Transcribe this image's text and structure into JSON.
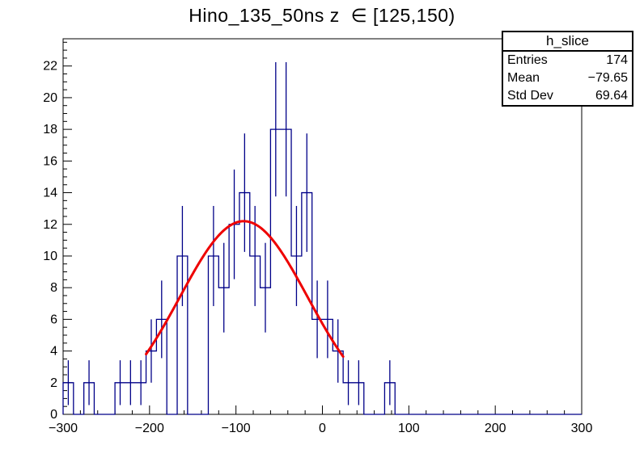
{
  "chart_data": {
    "type": "bar",
    "subtype": "root-histogram-with-gaussian-fit",
    "title": "Hino_135_50ns z  ∈ [125,150)",
    "xlabel": "",
    "ylabel": "",
    "xlim": [
      -300,
      300
    ],
    "ylim": [
      0,
      23.72
    ],
    "x_axis": {
      "major_ticks": [
        -300,
        -200,
        -100,
        0,
        100,
        200,
        300
      ],
      "minor_step": 20
    },
    "y_axis": {
      "major_ticks": [
        0,
        2,
        4,
        6,
        8,
        10,
        12,
        14,
        16,
        18,
        20,
        22
      ],
      "minor_step": 0.5
    },
    "bins": {
      "xmin": -300,
      "bin_width": 12,
      "counts": [
        2,
        0,
        2,
        0,
        0,
        2,
        2,
        2,
        4,
        6,
        0,
        10,
        0,
        0,
        10,
        8,
        12,
        14,
        10,
        8,
        18,
        18,
        10,
        14,
        6,
        6,
        4,
        2,
        2,
        0,
        0,
        2,
        0,
        0,
        0,
        0,
        0,
        0,
        0,
        0,
        0,
        0,
        0,
        0,
        0,
        0,
        0,
        0,
        0,
        0
      ]
    },
    "error_bars": "sqrt(count), drawn for non-empty bins",
    "fit": {
      "type": "gaussian",
      "amplitude": 12.2,
      "mean": -91,
      "sigma": 74,
      "range": [
        -204,
        25
      ]
    },
    "grid": false,
    "legend": false,
    "colors": {
      "histogram": "#000088",
      "fit": "#ee0000",
      "axis": "#000000",
      "background": "#ffffff"
    }
  },
  "stats_box": {
    "title": "h_slice",
    "rows": [
      {
        "label": "Entries",
        "value": "174"
      },
      {
        "label": "Mean",
        "value": "−79.65"
      },
      {
        "label": "Std Dev",
        "value": "69.64"
      }
    ]
  }
}
